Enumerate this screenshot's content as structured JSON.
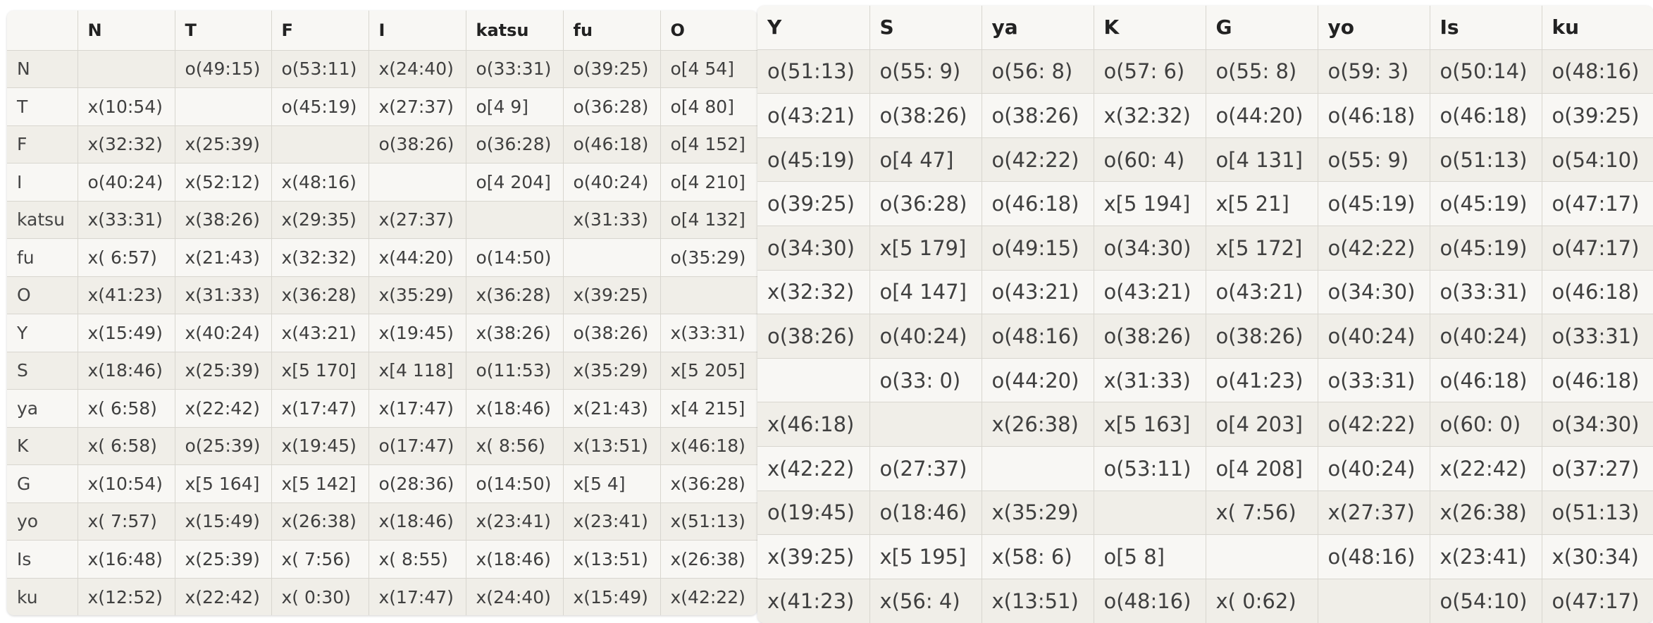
{
  "left_table": {
    "headers": [
      "",
      "N",
      "T",
      "F",
      "I",
      "katsu",
      "fu",
      "O"
    ],
    "rows": [
      [
        "N",
        "",
        "o(49:15)",
        "o(53:11)",
        "x(24:40)",
        "o(33:31)",
        "o(39:25)",
        "o[4 54]"
      ],
      [
        "T",
        "x(10:54)",
        "",
        "o(45:19)",
        "x(27:37)",
        "o[4 9]",
        "o(36:28)",
        "o[4 80]"
      ],
      [
        "F",
        "x(32:32)",
        "x(25:39)",
        "",
        "o(38:26)",
        "o(36:28)",
        "o(46:18)",
        "o[4 152]"
      ],
      [
        "I",
        "o(40:24)",
        "x(52:12)",
        "x(48:16)",
        "",
        "o[4 204]",
        "o(40:24)",
        "o[4 210]"
      ],
      [
        "katsu",
        "x(33:31)",
        "x(38:26)",
        "x(29:35)",
        "x(27:37)",
        "",
        "x(31:33)",
        "o[4 132]"
      ],
      [
        "fu",
        "x( 6:57)",
        "x(21:43)",
        "x(32:32)",
        "x(44:20)",
        "o(14:50)",
        "",
        "o(35:29)"
      ],
      [
        "O",
        "x(41:23)",
        "x(31:33)",
        "x(36:28)",
        "x(35:29)",
        "x(36:28)",
        "x(39:25)",
        ""
      ],
      [
        "Y",
        "x(15:49)",
        "x(40:24)",
        "x(43:21)",
        "x(19:45)",
        "x(38:26)",
        "o(38:26)",
        "x(33:31)"
      ],
      [
        "S",
        "x(18:46)",
        "x(25:39)",
        "x[5 170]",
        "x[4 118]",
        "o(11:53)",
        "x(35:29)",
        "x[5 205]"
      ],
      [
        "ya",
        "x( 6:58)",
        "x(22:42)",
        "x(17:47)",
        "x(17:47)",
        "x(18:46)",
        "x(21:43)",
        "x[4 215]"
      ],
      [
        "K",
        "x( 6:58)",
        "o(25:39)",
        "x(19:45)",
        "o(17:47)",
        "x( 8:56)",
        "x(13:51)",
        "x(46:18)"
      ],
      [
        "G",
        "x(10:54)",
        "x[5 164]",
        "x[5 142]",
        "o(28:36)",
        "o(14:50)",
        "x[5 4]",
        "x(36:28)"
      ],
      [
        "yo",
        "x( 7:57)",
        "x(15:49)",
        "x(26:38)",
        "x(18:46)",
        "x(23:41)",
        "x(23:41)",
        "x(51:13)"
      ],
      [
        "Is",
        "x(16:48)",
        "x(25:39)",
        "x( 7:56)",
        "x( 8:55)",
        "x(18:46)",
        "x(13:51)",
        "x(26:38)"
      ],
      [
        "ku",
        "x(12:52)",
        "x(22:42)",
        "x( 0:30)",
        "x(17:47)",
        "x(24:40)",
        "x(15:49)",
        "x(42:22)"
      ]
    ]
  },
  "right_table": {
    "headers": [
      "Y",
      "S",
      "ya",
      "K",
      "G",
      "yo",
      "Is",
      "ku"
    ],
    "rows": [
      [
        "o(51:13)",
        "o(55: 9)",
        "o(56: 8)",
        "o(57: 6)",
        "o(55: 8)",
        "o(59: 3)",
        "o(50:14)",
        "o(48:16)"
      ],
      [
        "o(43:21)",
        "o(38:26)",
        "o(38:26)",
        "x(32:32)",
        "o(44:20)",
        "o(46:18)",
        "o(46:18)",
        "o(39:25)"
      ],
      [
        "o(45:19)",
        "o[4 47]",
        "o(42:22)",
        "o(60: 4)",
        "o[4 131]",
        "o(55: 9)",
        "o(51:13)",
        "o(54:10)"
      ],
      [
        "o(39:25)",
        "o(36:28)",
        "o(46:18)",
        "x[5 194]",
        "x[5 21]",
        "o(45:19)",
        "o(45:19)",
        "o(47:17)"
      ],
      [
        "o(34:30)",
        "x[5 179]",
        "o(49:15)",
        "o(34:30)",
        "x[5 172]",
        "o(42:22)",
        "o(45:19)",
        "o(47:17)"
      ],
      [
        "x(32:32)",
        "o[4 147]",
        "o(43:21)",
        "o(43:21)",
        "o(43:21)",
        "o(34:30)",
        "o(33:31)",
        "o(46:18)"
      ],
      [
        "o(38:26)",
        "o(40:24)",
        "o(48:16)",
        "o(38:26)",
        "o(38:26)",
        "o(40:24)",
        "o(40:24)",
        "o(33:31)"
      ],
      [
        "",
        "o(33: 0)",
        "o(44:20)",
        "x(31:33)",
        "o(41:23)",
        "o(33:31)",
        "o(46:18)",
        "o(46:18)"
      ],
      [
        "x(46:18)",
        "",
        "x(26:38)",
        "x[5 163]",
        "o[4 203]",
        "o(42:22)",
        "o(60: 0)",
        "o(34:30)"
      ],
      [
        "x(42:22)",
        "o(27:37)",
        "",
        "o(53:11)",
        "o[4 208]",
        "o(40:24)",
        "x(22:42)",
        "o(37:27)"
      ],
      [
        "o(19:45)",
        "o(18:46)",
        "x(35:29)",
        "",
        "x( 7:56)",
        "x(27:37)",
        "x(26:38)",
        "o(51:13)"
      ],
      [
        "x(39:25)",
        "x[5 195]",
        "x(58: 6)",
        "o[5 8]",
        "",
        "o(48:16)",
        "x(23:41)",
        "x(30:34)"
      ],
      [
        "x(41:23)",
        "x(56: 4)",
        "x(13:51)",
        "o(48:16)",
        "x( 0:62)",
        "",
        "o(54:10)",
        "o(47:17)"
      ]
    ]
  }
}
